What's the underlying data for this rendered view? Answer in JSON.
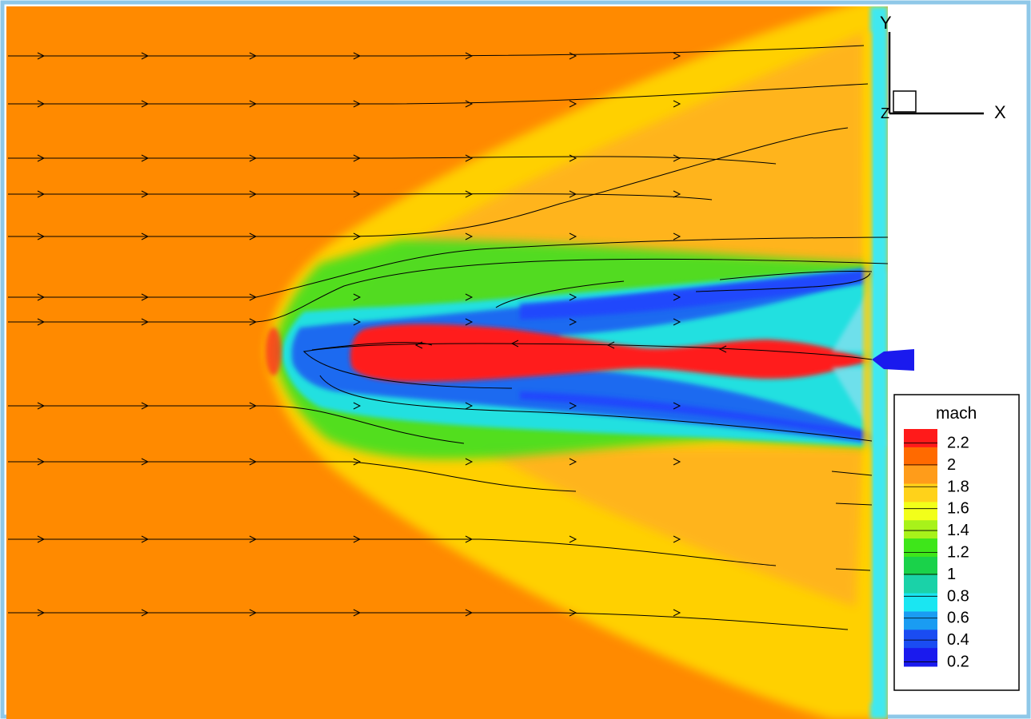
{
  "chart_data": {
    "type": "heatmap",
    "colorbar": {
      "title": "mach",
      "ticks": [
        "2.2",
        "2",
        "1.8",
        "1.6",
        "1.4",
        "1.2",
        "1",
        "0.8",
        "0.6",
        "0.4",
        "0.2"
      ],
      "colors": [
        "#ff1a1a",
        "#ff6a00",
        "#ff9c1a",
        "#ffd21a",
        "#f2ff1a",
        "#a8f21a",
        "#3ee61a",
        "#1ad24a",
        "#1ad2a8",
        "#1ae6f2",
        "#1a9cf2",
        "#1a4cf2",
        "#1a1aee"
      ],
      "range": [
        0.2,
        2.2
      ]
    },
    "axis_triad": {
      "x_label": "X",
      "y_label": "Y",
      "z_label": "Z"
    },
    "field": {
      "freestream_mach": 2.0,
      "jet_core_mach": 2.2,
      "recirculation_mach": 0.4,
      "wall_layer_mach": 0.6
    },
    "streamlines": {
      "description_units": "mach field streamtraces",
      "direction_outer": "left-to-right",
      "direction_core": "right-to-left"
    }
  },
  "colors": {
    "freestream": "#ff8a00",
    "border": "#8fc8e8",
    "background": "#ffffff"
  }
}
